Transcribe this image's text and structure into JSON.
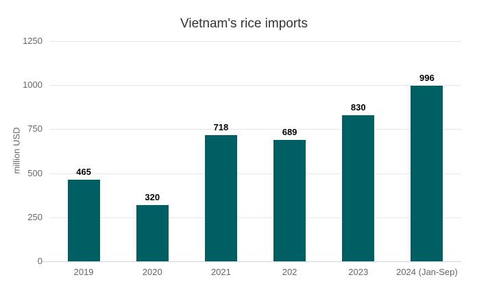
{
  "chart_data": {
    "type": "bar",
    "title": "Vietnam's rice imports",
    "xlabel": "",
    "ylabel": "million USD",
    "categories": [
      "2019",
      "2020",
      "2021",
      "202",
      "2023",
      "2024 (Jan-Sep)"
    ],
    "values": [
      465,
      320,
      718,
      689,
      830,
      996
    ],
    "ylim": [
      0,
      1250
    ],
    "yticks": [
      0,
      250,
      500,
      750,
      1000,
      1250
    ],
    "grid": true,
    "legend": false,
    "background": "#ffffff",
    "colors": {
      "bar": "#005f63",
      "title": "#333333",
      "axis_title": "#666666",
      "tick_label": "#666666",
      "value_label": "#000000",
      "gridline": "#e6e6e6",
      "axis_line": "#ccd6eb"
    }
  }
}
